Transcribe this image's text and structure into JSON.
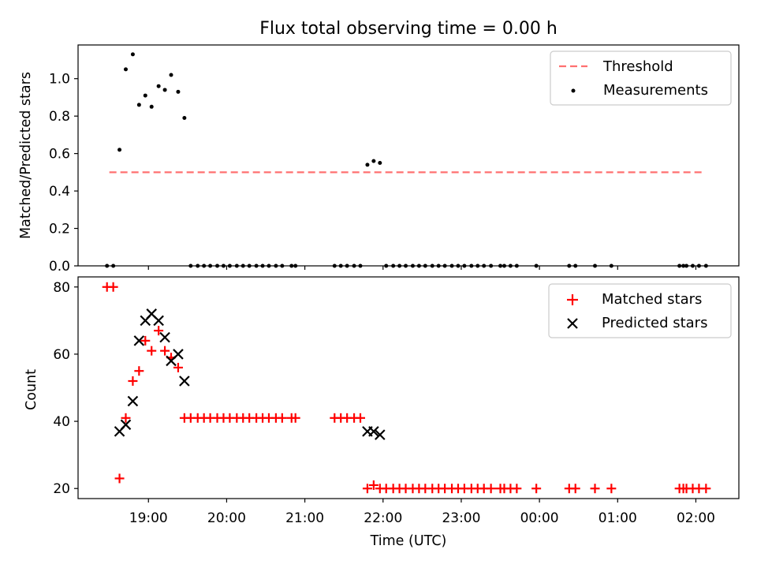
{
  "chart_data": [
    {
      "type": "scatter",
      "title": "Flux total observing time = 0.00 h",
      "ylabel": "Matched/Predicted stars",
      "ylim": [
        0,
        1.18
      ],
      "yticks": [
        "0.0",
        "0.2",
        "0.4",
        "0.6",
        "0.8",
        "1.0"
      ],
      "legend_position": "top-right",
      "threshold": {
        "name": "Threshold",
        "value": 0.5,
        "x_start": 18.5,
        "x_end": 26.08,
        "color": "#ff7070"
      },
      "series": [
        {
          "name": "Measurements",
          "color": "#000000",
          "points": [
            [
              18.47,
              0.0
            ],
            [
              18.55,
              0.0
            ],
            [
              18.63,
              0.62
            ],
            [
              18.71,
              1.05
            ],
            [
              18.8,
              1.13
            ],
            [
              18.88,
              0.86
            ],
            [
              18.96,
              0.91
            ],
            [
              19.04,
              0.85
            ],
            [
              19.13,
              0.96
            ],
            [
              19.21,
              0.94
            ],
            [
              19.29,
              1.02
            ],
            [
              19.38,
              0.93
            ],
            [
              19.46,
              0.79
            ],
            [
              19.54,
              0.0
            ],
            [
              19.63,
              0.0
            ],
            [
              19.71,
              0.0
            ],
            [
              19.79,
              0.0
            ],
            [
              19.88,
              0.0
            ],
            [
              19.96,
              0.0
            ],
            [
              20.04,
              0.0
            ],
            [
              20.13,
              0.0
            ],
            [
              20.21,
              0.0
            ],
            [
              20.29,
              0.0
            ],
            [
              20.38,
              0.0
            ],
            [
              20.46,
              0.0
            ],
            [
              20.54,
              0.0
            ],
            [
              20.63,
              0.0
            ],
            [
              20.71,
              0.0
            ],
            [
              20.83,
              0.0
            ],
            [
              20.88,
              0.0
            ],
            [
              21.38,
              0.0
            ],
            [
              21.46,
              0.0
            ],
            [
              21.54,
              0.0
            ],
            [
              21.63,
              0.0
            ],
            [
              21.71,
              0.0
            ],
            [
              21.8,
              0.54
            ],
            [
              21.88,
              0.56
            ],
            [
              21.96,
              0.55
            ],
            [
              22.04,
              0.0
            ],
            [
              22.13,
              0.0
            ],
            [
              22.21,
              0.0
            ],
            [
              22.29,
              0.0
            ],
            [
              22.38,
              0.0
            ],
            [
              22.46,
              0.0
            ],
            [
              22.54,
              0.0
            ],
            [
              22.63,
              0.0
            ],
            [
              22.71,
              0.0
            ],
            [
              22.79,
              0.0
            ],
            [
              22.88,
              0.0
            ],
            [
              22.96,
              0.0
            ],
            [
              23.04,
              0.0
            ],
            [
              23.13,
              0.0
            ],
            [
              23.21,
              0.0
            ],
            [
              23.29,
              0.0
            ],
            [
              23.38,
              0.0
            ],
            [
              23.5,
              0.0
            ],
            [
              23.55,
              0.0
            ],
            [
              23.63,
              0.0
            ],
            [
              23.71,
              0.0
            ],
            [
              23.96,
              0.0
            ],
            [
              24.38,
              0.0
            ],
            [
              24.46,
              0.0
            ],
            [
              24.71,
              0.0
            ],
            [
              24.92,
              0.0
            ],
            [
              25.79,
              0.0
            ],
            [
              25.84,
              0.0
            ],
            [
              25.88,
              0.0
            ],
            [
              25.96,
              0.0
            ],
            [
              26.04,
              0.0
            ],
            [
              26.13,
              0.0
            ]
          ]
        }
      ]
    },
    {
      "type": "scatter",
      "xlabel": "Time (UTC)",
      "ylabel": "Count",
      "ylim": [
        17,
        83
      ],
      "yticks": [
        "20",
        "40",
        "60",
        "80"
      ],
      "xticks": [
        "19:00",
        "20:00",
        "21:00",
        "22:00",
        "23:00",
        "00:00",
        "01:00",
        "02:00"
      ],
      "legend_position": "top-right",
      "series": [
        {
          "name": "Matched stars",
          "color": "#ff0000",
          "points": [
            [
              18.47,
              80
            ],
            [
              18.55,
              80
            ],
            [
              18.63,
              23
            ],
            [
              18.71,
              41
            ],
            [
              18.8,
              52
            ],
            [
              18.88,
              55
            ],
            [
              18.96,
              64
            ],
            [
              19.04,
              61
            ],
            [
              19.13,
              67
            ],
            [
              19.21,
              61
            ],
            [
              19.29,
              59
            ],
            [
              19.38,
              56
            ],
            [
              19.46,
              41
            ],
            [
              19.54,
              41
            ],
            [
              19.63,
              41
            ],
            [
              19.71,
              41
            ],
            [
              19.79,
              41
            ],
            [
              19.88,
              41
            ],
            [
              19.96,
              41
            ],
            [
              20.04,
              41
            ],
            [
              20.13,
              41
            ],
            [
              20.21,
              41
            ],
            [
              20.29,
              41
            ],
            [
              20.38,
              41
            ],
            [
              20.46,
              41
            ],
            [
              20.54,
              41
            ],
            [
              20.63,
              41
            ],
            [
              20.71,
              41
            ],
            [
              20.83,
              41
            ],
            [
              20.88,
              41
            ],
            [
              21.38,
              41
            ],
            [
              21.46,
              41
            ],
            [
              21.54,
              41
            ],
            [
              21.63,
              41
            ],
            [
              21.71,
              41
            ],
            [
              21.8,
              20
            ],
            [
              21.88,
              21
            ],
            [
              21.96,
              20
            ],
            [
              22.04,
              20
            ],
            [
              22.13,
              20
            ],
            [
              22.21,
              20
            ],
            [
              22.29,
              20
            ],
            [
              22.38,
              20
            ],
            [
              22.46,
              20
            ],
            [
              22.54,
              20
            ],
            [
              22.63,
              20
            ],
            [
              22.71,
              20
            ],
            [
              22.79,
              20
            ],
            [
              22.88,
              20
            ],
            [
              22.96,
              20
            ],
            [
              23.04,
              20
            ],
            [
              23.13,
              20
            ],
            [
              23.21,
              20
            ],
            [
              23.29,
              20
            ],
            [
              23.38,
              20
            ],
            [
              23.5,
              20
            ],
            [
              23.55,
              20
            ],
            [
              23.63,
              20
            ],
            [
              23.71,
              20
            ],
            [
              23.96,
              20
            ],
            [
              24.38,
              20
            ],
            [
              24.46,
              20
            ],
            [
              24.71,
              20
            ],
            [
              24.92,
              20
            ],
            [
              25.79,
              20
            ],
            [
              25.84,
              20
            ],
            [
              25.88,
              20
            ],
            [
              25.96,
              20
            ],
            [
              26.04,
              20
            ],
            [
              26.13,
              20
            ]
          ]
        },
        {
          "name": "Predicted stars",
          "color": "#000000",
          "points": [
            [
              18.63,
              37
            ],
            [
              18.71,
              39
            ],
            [
              18.8,
              46
            ],
            [
              18.88,
              64
            ],
            [
              18.96,
              70
            ],
            [
              19.04,
              72
            ],
            [
              19.13,
              70
            ],
            [
              19.21,
              65
            ],
            [
              19.29,
              58
            ],
            [
              19.38,
              60
            ],
            [
              19.46,
              52
            ],
            [
              21.8,
              37
            ],
            [
              21.88,
              37
            ],
            [
              21.96,
              36
            ]
          ]
        }
      ]
    }
  ]
}
